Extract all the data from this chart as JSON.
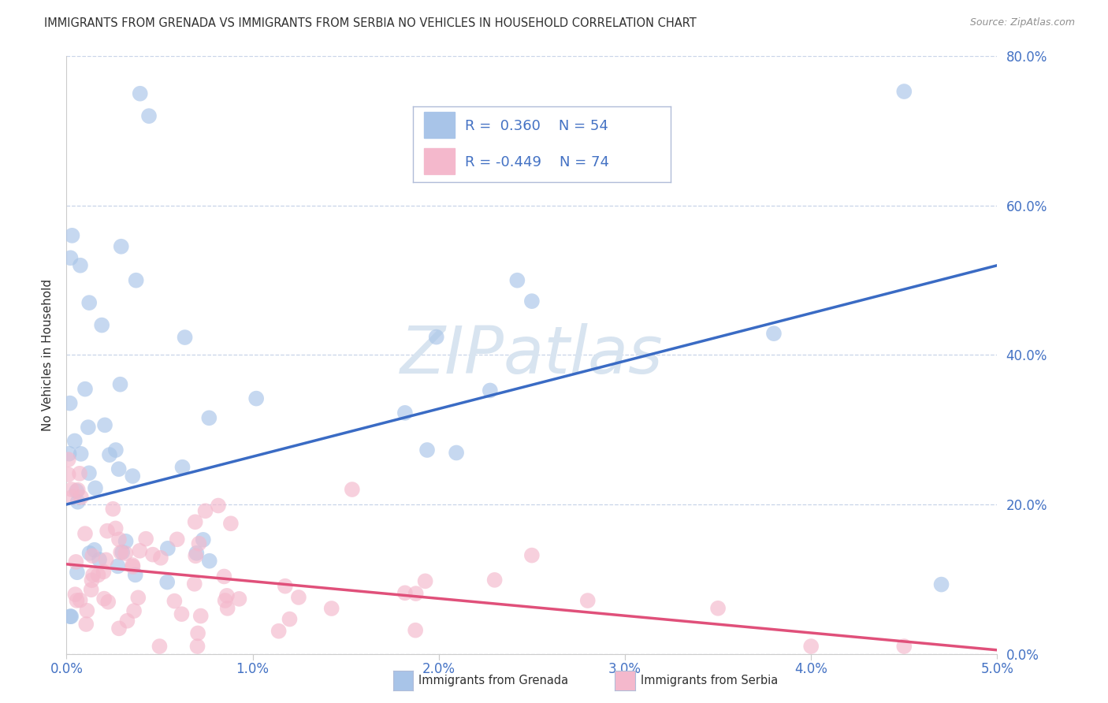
{
  "title": "IMMIGRANTS FROM GRENADA VS IMMIGRANTS FROM SERBIA NO VEHICLES IN HOUSEHOLD CORRELATION CHART",
  "source": "Source: ZipAtlas.com",
  "legend_label_grenada": "Immigrants from Grenada",
  "legend_label_serbia": "Immigrants from Serbia",
  "R_grenada": 0.36,
  "N_grenada": 54,
  "R_serbia": -0.449,
  "N_serbia": 74,
  "blue_scatter_color": "#a8c4e8",
  "pink_scatter_color": "#f4b8cc",
  "blue_line_color": "#3a6bc4",
  "pink_line_color": "#e0507a",
  "title_color": "#303030",
  "source_color": "#909090",
  "axis_tick_color": "#4472c4",
  "ylabel_color": "#303030",
  "legend_value_color": "#4472c4",
  "legend_label_color": "#303030",
  "background_color": "#ffffff",
  "grid_color": "#c8d4e8",
  "watermark_color": "#d8e4f0",
  "xmin": 0.0,
  "xmax": 5.0,
  "ymin": 0.0,
  "ymax": 80.0,
  "blue_line_x0": 0.0,
  "blue_line_y0": 20.0,
  "blue_line_x1": 5.0,
  "blue_line_y1": 52.0,
  "pink_line_x0": 0.0,
  "pink_line_y0": 12.0,
  "pink_line_x1": 5.0,
  "pink_line_y1": 0.5
}
